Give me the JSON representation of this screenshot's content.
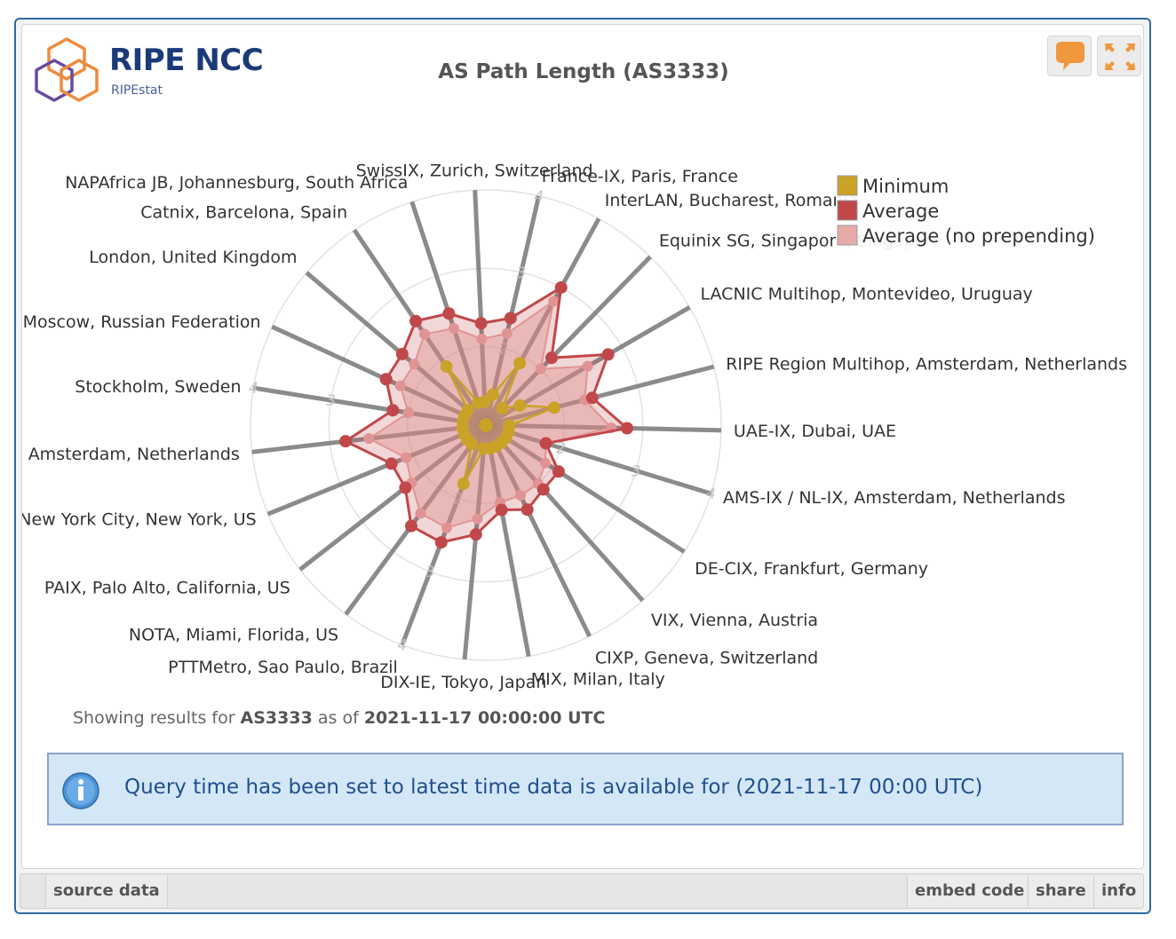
{
  "header": {
    "logo_title": "RIPE NCC",
    "logo_subtitle": "RIPEstat",
    "title": "AS Path Length (AS3333)"
  },
  "toolbar": {
    "feedback_icon": "speech-bubble-icon",
    "fullscreen_icon": "expand-arrows-icon"
  },
  "colors": {
    "minimum": "#c9a227",
    "average": "#c0484a",
    "average_no_prepending": "#e8aaa8",
    "spoke": "#777777",
    "frame": "#2f6aa1"
  },
  "chart_data": {
    "type": "radar",
    "title": "AS Path Length (AS3333)",
    "radial_axis": {
      "range": [
        1,
        4
      ],
      "tick_labels": [
        "2",
        "3",
        "4"
      ]
    },
    "legend_position": "top-right",
    "categories": [
      "France-IX, Paris, France",
      "InterLAN, Bucharest, Romania",
      "Equinix SG, Singapore, Singapore",
      "LACNIC Multihop, Montevideo, Uruguay",
      "RIPE Region Multihop, Amsterdam, Netherlands",
      "UAE-IX, Dubai, UAE",
      "AMS-IX / NL-IX, Amsterdam, Netherlands",
      "DE-CIX, Frankfurt, Germany",
      "VIX, Vienna, Austria",
      "CIXP, Geneva, Switzerland",
      "MIX, Milan, Italy",
      "DIX-IE, Tokyo, Japan",
      "PTTMetro, Sao Paulo, Brazil",
      "NOTA, Miami, Florida, US",
      "PAIX, Palo Alto, California, US",
      "New York City, New York, US",
      "Amsterdam, Netherlands",
      "Stockholm, Sweden",
      "Moscow, Russian Federation",
      "London, United Kingdom",
      "Catnix, Barcelona, Spain",
      "NAPAfrica JB, Johannesburg, South Africa",
      "SwissIX, Zurich, Switzerland"
    ],
    "series": [
      {
        "name": "Minimum",
        "values": [
          1.4,
          1.9,
          1.3,
          1.5,
          1.9,
          1.3,
          1.3,
          1.3,
          1.3,
          1.3,
          1.3,
          1.3,
          1.8,
          1.3,
          1.3,
          1.3,
          1.3,
          1.3,
          1.3,
          1.3,
          1.9,
          1.3,
          1.3
        ]
      },
      {
        "name": "Average",
        "values": [
          2.4,
          3.0,
          2.2,
          2.8,
          2.4,
          2.8,
          1.8,
          2.1,
          2.1,
          2.2,
          2.1,
          2.4,
          2.6,
          2.6,
          2.3,
          2.3,
          2.8,
          2.2,
          2.4,
          2.4,
          2.6,
          2.5,
          2.3
        ]
      },
      {
        "name": "Average (no prepending)",
        "values": [
          2.2,
          2.8,
          2.0,
          2.5,
          2.3,
          2.6,
          1.8,
          1.9,
          2.0,
          2.0,
          2.0,
          2.2,
          2.4,
          2.4,
          2.2,
          2.1,
          2.5,
          2.0,
          2.2,
          2.2,
          2.4,
          2.3,
          2.1
        ]
      }
    ]
  },
  "results": {
    "prefix": "Showing results for ",
    "resource": "AS3333",
    "middle": " as of ",
    "timestamp": "2021-11-17 00:00:00 UTC"
  },
  "notice": {
    "icon": "info-icon",
    "text": "Query time has been set to latest time data is available for (2021-11-17 00:00 UTC)"
  },
  "footer": {
    "source_data": "source data",
    "embed_code": "embed code",
    "share": "share",
    "info": "info"
  }
}
